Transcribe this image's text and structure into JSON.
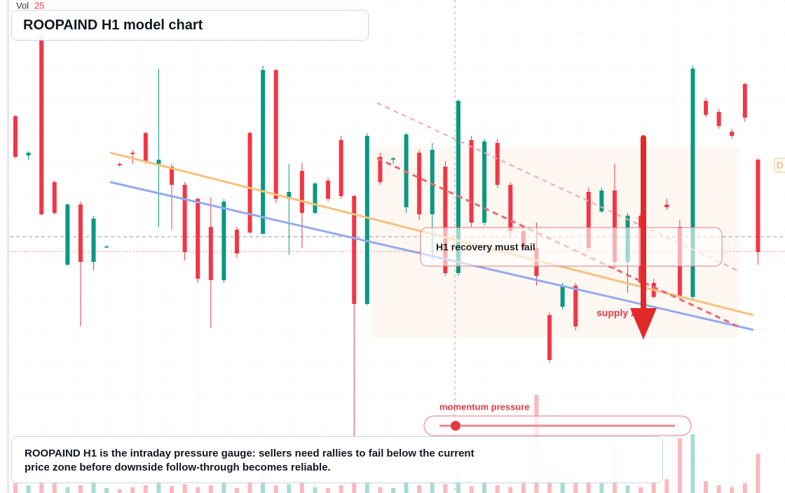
{
  "header": {
    "vol_label": "Vol",
    "vol_value": 25,
    "title": "ROOPAIND H1 model chart"
  },
  "chart_data": {
    "type": "candlestick",
    "open": [
      538,
      482,
      654,
      444,
      326,
      412,
      330,
      352,
      470,
      486,
      514,
      470,
      466,
      440,
      420,
      380,
      304,
      376,
      514,
      370,
      604,
      420,
      460,
      400,
      446,
      504,
      424,
      270,
      480,
      476,
      408,
      486,
      398,
      466,
      314,
      504,
      386,
      500,
      440,
      374,
      350,
      254,
      266,
      296,
      430,
      402,
      432,
      330,
      396,
      300,
      412,
      380,
      280,
      560,
      544,
      516,
      584,
      476
    ],
    "high": [
      540,
      488,
      684,
      446,
      414,
      416,
      396,
      354,
      472,
      490,
      516,
      606,
      470,
      444,
      422,
      422,
      420,
      380,
      516,
      610,
      606,
      470,
      472,
      444,
      450,
      510,
      426,
      514,
      486,
      480,
      514,
      490,
      500,
      474,
      562,
      510,
      506,
      506,
      444,
      380,
      386,
      258,
      300,
      300,
      436,
      436,
      470,
      400,
      400,
      306,
      420,
      390,
      610,
      564,
      548,
      520,
      586,
      478
    ],
    "low": [
      478,
      476,
      396,
      398,
      324,
      238,
      318,
      350,
      466,
      470,
      470,
      380,
      376,
      332,
      300,
      236,
      300,
      336,
      370,
      370,
      414,
      340,
      350,
      398,
      416,
      420,
      80,
      268,
      440,
      470,
      400,
      390,
      334,
      310,
      310,
      380,
      382,
      436,
      366,
      346,
      296,
      186,
      262,
      232,
      346,
      400,
      320,
      286,
      296,
      278,
      404,
      276,
      276,
      536,
      520,
      506,
      530,
      326
    ],
    "close": [
      480,
      486,
      398,
      400,
      412,
      330,
      392,
      352,
      468,
      484,
      474,
      476,
      440,
      344,
      306,
      304,
      416,
      342,
      372,
      604,
      420,
      430,
      400,
      442,
      420,
      424,
      270,
      510,
      444,
      478,
      512,
      398,
      490,
      314,
      560,
      386,
      502,
      440,
      374,
      350,
      310,
      190,
      296,
      238,
      350,
      432,
      330,
      396,
      300,
      280,
      408,
      280,
      606,
      540,
      524,
      510,
      536,
      344
    ],
    "volume": [
      10,
      8,
      40,
      12,
      6,
      8,
      14,
      5,
      4,
      6,
      8,
      10,
      7,
      9,
      6,
      8,
      10,
      5,
      12,
      30,
      8,
      9,
      10,
      6,
      5,
      8,
      12,
      14,
      6,
      5,
      10,
      8,
      12,
      9,
      20,
      7,
      10,
      8,
      6,
      14,
      100,
      30,
      20,
      18,
      12,
      10,
      50,
      8,
      6,
      10,
      14,
      56,
      60,
      12,
      8,
      6,
      10,
      40
    ],
    "ylim": [
      0,
      704
    ],
    "vlim": [
      0,
      100
    ],
    "up_color": "#089981",
    "down_color": "#f23645"
  },
  "annotations": {
    "recovery": "H1 recovery must fail",
    "supply": "supply zone",
    "momentum": "momentum pressure",
    "side_label": "D"
  },
  "footer": {
    "text": "ROOPAIND H1 is the intraday pressure gauge: sellers need rallies to fail below the current price zone before downside follow-through becomes reliable."
  }
}
